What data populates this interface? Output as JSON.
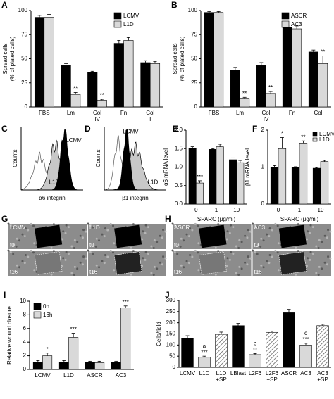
{
  "chart_data": [
    {
      "type": "bar",
      "panel": "A",
      "ylabel": [
        "Spread cells",
        "(% of plated cells)"
      ],
      "categories": [
        "FBS",
        "Lm",
        "Col IV",
        "Fn",
        "Col I"
      ],
      "series": [
        {
          "name": "LCMV",
          "color": "#000000",
          "values": [
            93,
            43,
            36,
            66,
            46
          ],
          "errors": [
            2,
            2,
            1,
            3,
            2
          ],
          "annotations": [
            null,
            null,
            null,
            null,
            null
          ]
        },
        {
          "name": "L1D",
          "color": "#d9d9d9",
          "values": [
            93,
            13,
            7,
            69,
            45
          ],
          "errors": [
            3,
            2,
            1,
            3,
            2
          ],
          "annotations": [
            null,
            "**",
            "**",
            null,
            null
          ]
        }
      ],
      "ylim": [
        0,
        100
      ],
      "yticks": [
        0,
        25,
        50,
        75,
        100
      ],
      "legend": "upper right"
    },
    {
      "type": "bar",
      "panel": "B",
      "ylabel": [
        "Spread cells",
        "(% of plated cells)"
      ],
      "categories": [
        "FBS",
        "Lm",
        "Col IV",
        "Fn",
        "Col I"
      ],
      "series": [
        {
          "name": "ASCR",
          "color": "#000000",
          "values": [
            98,
            38,
            43,
            83,
            57
          ],
          "errors": [
            1,
            3,
            3,
            1,
            2
          ],
          "annotations": [
            null,
            null,
            null,
            null,
            null
          ]
        },
        {
          "name": "AC3",
          "color": "#d9d9d9",
          "values": [
            98,
            9,
            14,
            81,
            45
          ],
          "errors": [
            1,
            1,
            2,
            3,
            8
          ],
          "annotations": [
            null,
            "**",
            "**",
            null,
            "**"
          ]
        }
      ],
      "ylim": [
        0,
        100
      ],
      "yticks": [
        0,
        25,
        50,
        75,
        100
      ],
      "legend": "upper right"
    },
    {
      "type": "flow-histogram",
      "panel": "C",
      "xlabel": "α6 integrin",
      "ylabel": "Counts",
      "labels": [
        "LCMV",
        "L1D"
      ]
    },
    {
      "type": "flow-histogram",
      "panel": "D",
      "xlabel": "β1 integrin",
      "ylabel": "Counts",
      "labels": [
        "LCMV",
        "L1D"
      ]
    },
    {
      "type": "bar",
      "panel": "E",
      "ylabel": "α6 mRNA level",
      "xlabel": "SPARC (μg/ml)",
      "categories": [
        "0",
        "1",
        "10"
      ],
      "series": [
        {
          "color": "#000000",
          "values": [
            1.5,
            1.48,
            1.2
          ],
          "errors": [
            0.05,
            0.02,
            0.05
          ],
          "annotations": [
            null,
            null,
            null
          ]
        },
        {
          "color": "#d9d9d9",
          "values": [
            0.57,
            1.55,
            1.12
          ],
          "errors": [
            0.06,
            0.07,
            0.06
          ],
          "annotations": [
            "***",
            null,
            null
          ]
        }
      ],
      "ylim": [
        0,
        2
      ],
      "yticks": [
        {
          "value": 0,
          "label": "0.0"
        },
        {
          "value": 0.5,
          "label": "0.5"
        },
        {
          "value": 1,
          "label": "1.0"
        },
        {
          "value": 1.5,
          "label": "1.5"
        },
        {
          "value": 2,
          "label": "2.0"
        }
      ]
    },
    {
      "type": "bar",
      "panel": "F",
      "ylabel": "β1 mRNA level",
      "xlabel": "SPARC (μg/ml)",
      "categories": [
        "0",
        "1",
        "10"
      ],
      "series": [
        {
          "name": "LCMV",
          "color": "#000000",
          "values": [
            1.0,
            1.0,
            0.97
          ],
          "errors": [
            0.04,
            0.01,
            0.02
          ],
          "annotations": [
            null,
            null,
            null
          ]
        },
        {
          "name": "L1D",
          "color": "#d9d9d9",
          "values": [
            1.5,
            1.65,
            1.15
          ],
          "errors": [
            0.3,
            0.06,
            0.03
          ],
          "annotations": [
            "*",
            "**",
            null
          ]
        }
      ],
      "ylim": [
        0,
        2
      ],
      "yticks": [
        0,
        1,
        2
      ],
      "legend": "upper right"
    },
    {
      "type": "image",
      "panel": "G",
      "labels": [
        "LCMV",
        "L1D"
      ],
      "times": [
        "t0",
        "t16"
      ]
    },
    {
      "type": "image",
      "panel": "H",
      "labels": [
        "ASCR",
        "AC3"
      ],
      "times": [
        "t0",
        "t16"
      ]
    },
    {
      "type": "bar",
      "panel": "I",
      "ylabel": "Relative wound closure",
      "categories": [
        "LCMV",
        "L1D",
        "ASCR",
        "AC3"
      ],
      "series": [
        {
          "name": "0h",
          "color": "#000000",
          "values": [
            1,
            1,
            1,
            1
          ],
          "errors": [
            0.3,
            0.3,
            0.2,
            0.2
          ],
          "annotations": [
            null,
            null,
            null,
            null
          ]
        },
        {
          "name": "16h",
          "color": "#d9d9d9",
          "values": [
            2,
            4.7,
            1,
            9
          ],
          "errors": [
            0.4,
            0.6,
            0.2,
            0.3
          ],
          "annotations": [
            "*",
            "***",
            null,
            "***"
          ]
        }
      ],
      "ylim": [
        0,
        10
      ],
      "yticks": [
        0,
        2,
        4,
        6,
        8,
        10
      ],
      "legend": "upper left"
    },
    {
      "type": "bar",
      "panel": "J",
      "ylabel": "Cells/field",
      "categories": [
        "LCMV",
        "L1D",
        "L1D +SP",
        "LBlast",
        "L2F6",
        "L2F6 +SP",
        "ASCR",
        "AC3",
        "AC3 +SP"
      ],
      "values": [
        130,
        45,
        148,
        187,
        57,
        157,
        245,
        100,
        187
      ],
      "errors": [
        12,
        5,
        10,
        10,
        5,
        6,
        15,
        8,
        6
      ],
      "colors": [
        "#000000",
        "#d9d9d9",
        "hatched",
        "#000000",
        "#d9d9d9",
        "hatched",
        "#000000",
        "#d9d9d9",
        "hatched"
      ],
      "annotations": [
        null,
        [
          "a",
          "***"
        ],
        null,
        null,
        [
          "b",
          "**"
        ],
        null,
        null,
        [
          "c",
          "***"
        ],
        null
      ],
      "ylim": [
        0,
        300
      ],
      "yticks": [
        0,
        50,
        100,
        150,
        200,
        250,
        300
      ]
    }
  ]
}
